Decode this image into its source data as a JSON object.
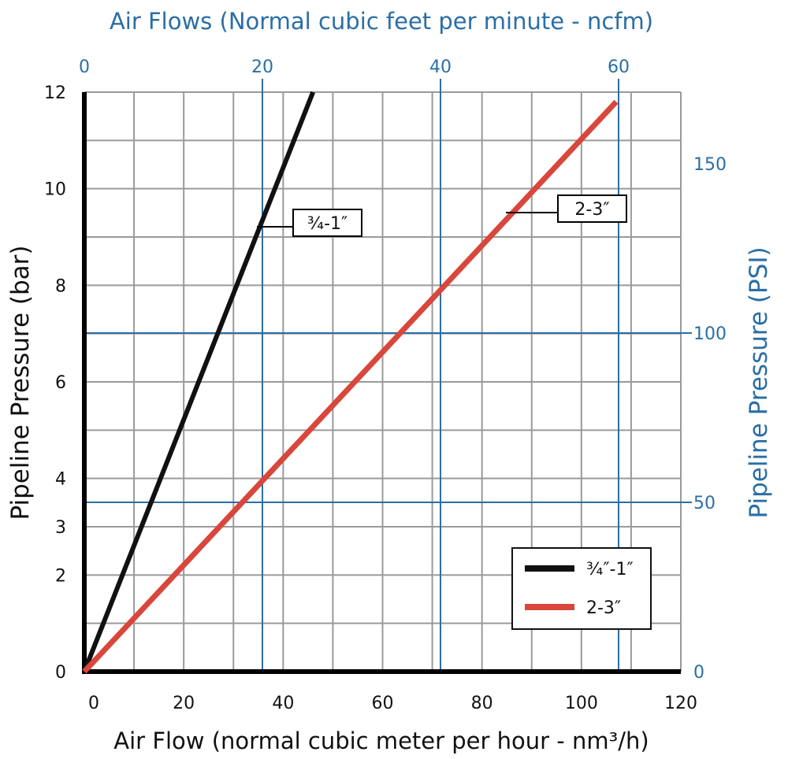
{
  "chart_data": {
    "type": "line",
    "title": "Air Flows (Normal cubic feet per minute - ncfm)",
    "xlabel": "Air Flow (normal cubic meter per hour - nm³/h)",
    "ylabel": "Pipeline Pressure (bar)",
    "x2label": "Air Flows (Normal cubic feet per minute - ncfm)",
    "y2label": "Pipeline Pressure (PSI)",
    "xlim": [
      0,
      120
    ],
    "ylim": [
      0,
      12
    ],
    "x_ticks": [
      "0",
      "20",
      "40",
      "60",
      "80",
      "100",
      "120"
    ],
    "y_ticks": [
      "0",
      "2",
      "3",
      "4",
      "6",
      "8",
      "10",
      "12"
    ],
    "y_tick_values": [
      0,
      2,
      3,
      4,
      6,
      8,
      10,
      12
    ],
    "x2_ticks": [
      "0",
      "20",
      "40",
      "60"
    ],
    "x2_tick_values": [
      0,
      20,
      40,
      60
    ],
    "y2_ticks": [
      "0",
      "50",
      "100",
      "150"
    ],
    "y2_tick_values": [
      0,
      50,
      100,
      150
    ],
    "grid": true,
    "legend_position": "bottom-right",
    "series": [
      {
        "name": "¾″-1″",
        "color": "#111111",
        "x": [
          0,
          46
        ],
        "y": [
          0,
          12
        ],
        "inline_label": "¾-1″"
      },
      {
        "name": "2-3″",
        "color": "#d9463b",
        "x": [
          0,
          107
        ],
        "y": [
          0,
          11.8
        ],
        "inline_label": "2-3″"
      }
    ]
  }
}
